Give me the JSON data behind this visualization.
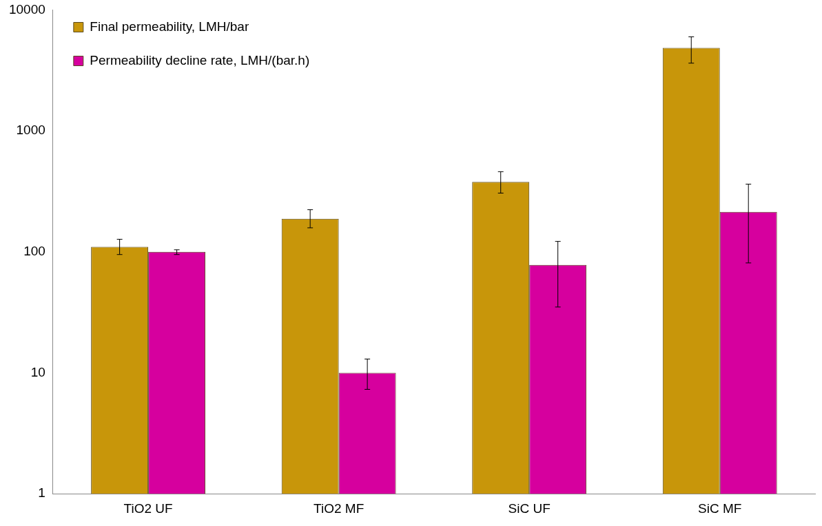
{
  "chart_data": {
    "type": "bar",
    "categories": [
      "TiO2 UF",
      "TiO2 MF",
      "SiC UF",
      "SiC MF"
    ],
    "series": [
      {
        "name": "Final permeability, LMH/bar",
        "color": "#c8960a",
        "values": [
          110,
          188,
          378,
          4850
        ],
        "errors": [
          [
            95,
            127
          ],
          [
            158,
            223
          ],
          [
            306,
            460
          ],
          [
            3630,
            5990
          ]
        ]
      },
      {
        "name": "Permeability decline rate, LMH/(bar.h)",
        "color": "#d6009e",
        "values": [
          100,
          10,
          78,
          214
        ],
        "errors": [
          [
            95,
            104
          ],
          [
            7.3,
            13
          ],
          [
            35,
            122
          ],
          [
            81,
            363
          ]
        ]
      }
    ],
    "log": "y",
    "ylim": [
      1,
      10000
    ],
    "yticks": [
      1,
      10,
      100,
      1000,
      10000
    ],
    "grid": false,
    "legend": "top left"
  }
}
